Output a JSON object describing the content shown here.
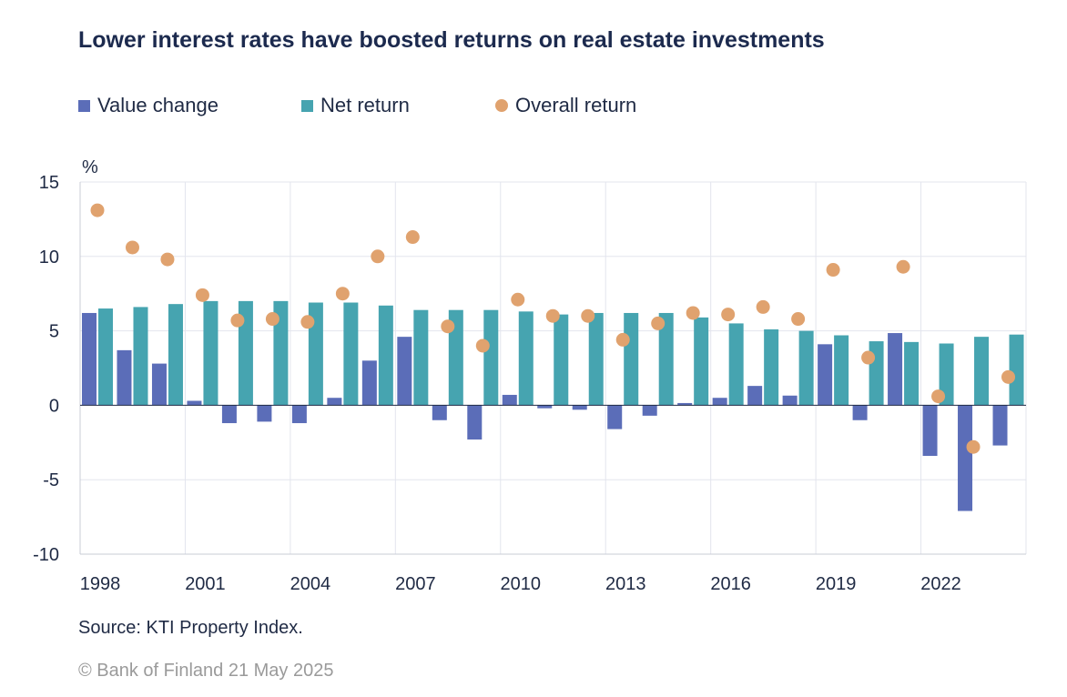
{
  "title": "Lower interest rates have boosted returns on real estate investments",
  "legend": [
    {
      "label": "Value change",
      "color": "#5b6db8",
      "shape": "square"
    },
    {
      "label": "Net return",
      "color": "#46a4b0",
      "shape": "square"
    },
    {
      "label": "Overall return",
      "color": "#e0a26e",
      "shape": "circle"
    }
  ],
  "source": "Source: KTI Property Index.",
  "copyright": "© Bank of Finland 21 May 2025",
  "chart_data": {
    "type": "bar",
    "title": "Lower interest rates have boosted returns on real estate investments",
    "ylabel": "%",
    "ylim": [
      -10,
      15
    ],
    "yticks": [
      15,
      10,
      5,
      0,
      -5,
      -10
    ],
    "xtick_labels": [
      "1998",
      "2001",
      "2004",
      "2007",
      "2010",
      "2013",
      "2016",
      "2019",
      "2022"
    ],
    "categories": [
      "1998",
      "1999",
      "2000",
      "2001",
      "2002",
      "2003",
      "2004",
      "2005",
      "2006",
      "2007",
      "2008",
      "2009",
      "2010",
      "2011",
      "2012",
      "2013",
      "2014",
      "2015",
      "2016",
      "2017",
      "2018",
      "2019",
      "2020",
      "2021",
      "2022",
      "2023",
      "2024"
    ],
    "series": [
      {
        "name": "Value change",
        "kind": "bar",
        "color": "#5b6db8",
        "values": [
          6.2,
          3.7,
          2.8,
          0.3,
          -1.2,
          -1.1,
          -1.2,
          0.5,
          3.0,
          4.6,
          -1.0,
          -2.3,
          0.7,
          -0.2,
          -0.3,
          -1.6,
          -0.7,
          0.15,
          0.5,
          1.3,
          0.65,
          4.1,
          -1.0,
          4.85,
          -3.4,
          -7.1,
          -2.7
        ]
      },
      {
        "name": "Net return",
        "kind": "bar",
        "color": "#46a4b0",
        "values": [
          6.5,
          6.6,
          6.8,
          7.0,
          7.0,
          7.0,
          6.9,
          6.9,
          6.7,
          6.4,
          6.4,
          6.4,
          6.3,
          6.1,
          6.2,
          6.2,
          6.2,
          5.9,
          5.5,
          5.1,
          5.0,
          4.7,
          4.3,
          4.25,
          4.15,
          4.6,
          4.75
        ]
      },
      {
        "name": "Overall return",
        "kind": "dot",
        "color": "#e0a26e",
        "values": [
          13.1,
          10.6,
          9.8,
          7.4,
          5.7,
          5.8,
          5.6,
          7.5,
          10.0,
          11.3,
          5.3,
          4.0,
          7.1,
          6.0,
          6.0,
          4.4,
          5.5,
          6.2,
          6.1,
          6.6,
          5.8,
          9.1,
          3.2,
          9.3,
          0.6,
          -2.8,
          1.9
        ]
      }
    ],
    "grid": true,
    "legend_position": "top-left"
  }
}
